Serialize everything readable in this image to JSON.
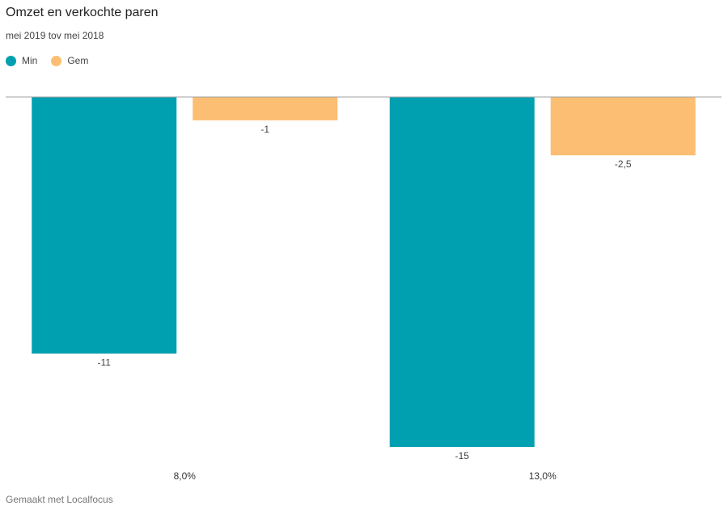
{
  "chart_data": {
    "type": "bar",
    "title": "Omzet en verkochte paren",
    "subtitle": "mei 2019 tov mei 2018",
    "categories": [
      "8,0%",
      "13,0%"
    ],
    "series": [
      {
        "name": "Min",
        "values": [
          -11,
          -15
        ],
        "data_labels": [
          "-11",
          "-15"
        ],
        "color": "#00a0b0"
      },
      {
        "name": "Gem",
        "values": [
          -1,
          -2.5
        ],
        "data_labels": [
          "-1",
          "-2,5"
        ],
        "color": "#fcbe72"
      }
    ],
    "ylim": [
      -15,
      0
    ],
    "grid": false,
    "legend": "top-left"
  },
  "footer": {
    "credit": "Gemaakt met Localfocus"
  }
}
